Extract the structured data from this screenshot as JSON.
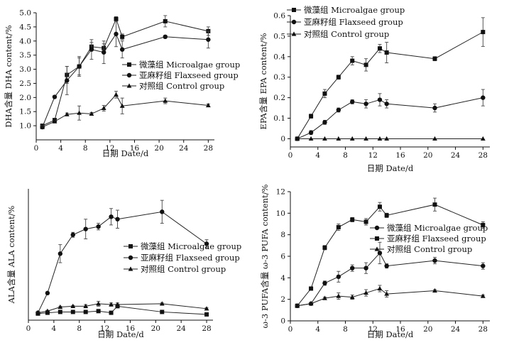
{
  "chart_data": [
    {
      "type": "line",
      "title": "",
      "xlabel": "日期  Date/d",
      "ylabel": "DHA含量  DHA content/%",
      "xlim": [
        0,
        29
      ],
      "ylim": [
        0.5,
        5.0
      ],
      "xticks": [
        0,
        4,
        8,
        12,
        16,
        20,
        24,
        28
      ],
      "xtick_labels": [
        "0",
        "4",
        "8",
        "12",
        "16",
        "20",
        "24",
        "28"
      ],
      "yticks": [
        1.0,
        1.5,
        2.0,
        2.5,
        3.0,
        3.5,
        4.0,
        4.5,
        5.0
      ],
      "ytick_labels": [
        "1.0",
        "1.5",
        "2.0",
        "2.5",
        "3.0",
        "3.5",
        "4.0",
        "4.5",
        "5.0"
      ],
      "legend_position": "center-right",
      "series": [
        {
          "name": "微藻组  Microalgae group",
          "marker": "square",
          "x": [
            1,
            3,
            5,
            7,
            9,
            11,
            13,
            14,
            21,
            28
          ],
          "y": [
            1.0,
            1.2,
            2.8,
            3.1,
            3.8,
            3.75,
            4.78,
            4.15,
            4.7,
            4.35
          ],
          "err": [
            0.05,
            0.05,
            0.3,
            0.3,
            0.15,
            0.15,
            0.08,
            0.1,
            0.2,
            0.15
          ]
        },
        {
          "name": "亚麻籽组  Flaxseed group",
          "marker": "circle",
          "x": [
            1,
            3,
            5,
            7,
            9,
            11,
            13,
            14,
            21,
            28
          ],
          "y": [
            0.95,
            2.02,
            2.6,
            3.1,
            3.7,
            3.6,
            4.25,
            3.7,
            4.15,
            4.05
          ],
          "err": [
            0.05,
            0.05,
            0.5,
            0.35,
            0.35,
            0.4,
            0.45,
            0.3,
            0.05,
            0.3
          ]
        },
        {
          "name": "对照组  Control group",
          "marker": "triangle",
          "x": [
            1,
            3,
            5,
            7,
            9,
            11,
            13,
            14,
            21,
            28
          ],
          "y": [
            0.95,
            1.15,
            1.4,
            1.45,
            1.42,
            1.62,
            2.1,
            1.7,
            1.88,
            1.72
          ],
          "err": [
            0.05,
            0.05,
            0.05,
            0.25,
            0.05,
            0.1,
            0.12,
            0.28,
            0.1,
            0.05
          ]
        }
      ]
    },
    {
      "type": "line",
      "title": "",
      "xlabel": "日期  Date/d",
      "ylabel": "EPA含量  EPA content/%",
      "xlim": [
        0,
        29
      ],
      "ylim": [
        -0.04,
        0.6
      ],
      "xticks": [
        0,
        4,
        8,
        12,
        16,
        20,
        24,
        28
      ],
      "xtick_labels": [
        "0",
        "4",
        "8",
        "12",
        "16",
        "20",
        "24",
        "28"
      ],
      "yticks": [
        0,
        0.1,
        0.2,
        0.3,
        0.4,
        0.5,
        0.6
      ],
      "ytick_labels": [
        "0",
        "0.1",
        "0.2",
        "0.3",
        "0.4",
        "0.5",
        "0.6"
      ],
      "legend_position": "top-left",
      "series": [
        {
          "name": "微藻组  Microalgae group",
          "marker": "square",
          "x": [
            1,
            3,
            5,
            7,
            9,
            11,
            13,
            14,
            21,
            28
          ],
          "y": [
            0.0,
            0.11,
            0.22,
            0.3,
            0.38,
            0.36,
            0.44,
            0.42,
            0.39,
            0.52
          ],
          "err": [
            0.005,
            0.01,
            0.02,
            0.01,
            0.02,
            0.03,
            0.02,
            0.05,
            0.01,
            0.07
          ]
        },
        {
          "name": "亚麻籽组  Flaxseed group",
          "marker": "circle",
          "x": [
            1,
            3,
            5,
            7,
            9,
            11,
            13,
            14,
            21,
            28
          ],
          "y": [
            0.0,
            0.03,
            0.08,
            0.14,
            0.18,
            0.17,
            0.19,
            0.17,
            0.15,
            0.2
          ],
          "err": [
            0.005,
            0.01,
            0.01,
            0.01,
            0.01,
            0.02,
            0.03,
            0.02,
            0.02,
            0.04
          ]
        },
        {
          "name": "对照组  Control group",
          "marker": "triangle",
          "x": [
            1,
            3,
            5,
            7,
            9,
            11,
            13,
            14,
            21,
            28
          ],
          "y": [
            0,
            0,
            0,
            0,
            0,
            0,
            0,
            0,
            0,
            0
          ],
          "err": [
            0,
            0,
            0,
            0,
            0,
            0,
            0,
            0,
            0,
            0
          ]
        }
      ]
    },
    {
      "type": "line",
      "title": "",
      "xlabel": "日期  Date/d",
      "ylabel": "ALA含量  ALA content/%",
      "xlim": [
        0,
        29
      ],
      "ylim": [
        0,
        8
      ],
      "xticks": [
        0,
        4,
        8,
        12,
        16,
        20,
        24,
        28
      ],
      "xtick_labels": [
        "0",
        "4",
        "8",
        "12",
        "16",
        "20",
        "24",
        "28"
      ],
      "yticks": [],
      "ytick_labels": [],
      "legend_position": "center",
      "series": [
        {
          "name": "微藻组  Microalgae group",
          "marker": "square",
          "x": [
            1.5,
            3,
            5,
            7,
            9,
            11,
            13,
            14,
            21,
            28
          ],
          "y": [
            0.4,
            0.45,
            0.5,
            0.5,
            0.5,
            0.55,
            0.45,
            0.85,
            0.5,
            0.35
          ],
          "err": [
            0.05,
            0.05,
            0.05,
            0.05,
            0.05,
            0.05,
            0.05,
            0.05,
            0.05,
            0.05
          ]
        },
        {
          "name": "亚麻籽组  Flaxseed group",
          "marker": "circle",
          "x": [
            1.5,
            3,
            5,
            7,
            9,
            11,
            13,
            14,
            21,
            28
          ],
          "y": [
            0.45,
            1.65,
            4.05,
            5.2,
            5.55,
            5.7,
            6.3,
            6.15,
            6.6,
            4.65
          ],
          "err": [
            0.05,
            0.05,
            0.55,
            0.15,
            0.6,
            0.2,
            0.5,
            0.55,
            0.7,
            0.25
          ]
        },
        {
          "name": "对照组  Control group",
          "marker": "triangle",
          "x": [
            1.5,
            3,
            5,
            7,
            9,
            11,
            13,
            14,
            21,
            28
          ],
          "y": [
            0.45,
            0.55,
            0.8,
            0.85,
            0.85,
            1.0,
            0.95,
            0.95,
            1.0,
            0.7
          ],
          "err": [
            0.05,
            0.05,
            0.05,
            0.05,
            0.1,
            0.15,
            0.1,
            0.1,
            0.05,
            0.05
          ]
        }
      ]
    },
    {
      "type": "line",
      "title": "",
      "xlabel": "日期  Date/d",
      "ylabel": "ω-3 PUFA含量  ω-3 PUFA content/%",
      "xlim": [
        0,
        29
      ],
      "ylim": [
        0,
        12
      ],
      "xticks": [
        0,
        4,
        8,
        12,
        16,
        20,
        24,
        28
      ],
      "xtick_labels": [
        "0",
        "4",
        "8",
        "12",
        "16",
        "20",
        "24",
        "28"
      ],
      "yticks": [
        0,
        2,
        4,
        6,
        8,
        10,
        12
      ],
      "ytick_labels": [
        "0",
        "2",
        "4",
        "6",
        "8",
        "10",
        "12"
      ],
      "legend_position": "center-right",
      "series": [
        {
          "name": "微藻组  Microalgae group",
          "marker": "circle",
          "x": [
            1,
            3,
            5,
            7,
            9,
            11,
            13,
            14,
            21,
            28
          ],
          "y": [
            1.4,
            1.6,
            3.5,
            4.1,
            4.9,
            4.9,
            6.3,
            5.1,
            5.6,
            5.1
          ],
          "err": [
            0.05,
            0.1,
            0.2,
            0.5,
            0.3,
            0.5,
            1.0,
            0.2,
            0.3,
            0.3
          ]
        },
        {
          "name": "亚麻籽组  Flaxseed group",
          "marker": "square",
          "x": [
            1,
            3,
            5,
            7,
            9,
            11,
            13,
            14,
            21,
            28
          ],
          "y": [
            1.4,
            3.0,
            6.8,
            8.7,
            9.4,
            9.2,
            10.6,
            9.8,
            10.8,
            8.9
          ],
          "err": [
            0.05,
            0.1,
            0.2,
            0.3,
            0.2,
            0.3,
            0.4,
            0.2,
            0.6,
            0.3
          ]
        },
        {
          "name": "对照组  Control group",
          "marker": "triangle",
          "x": [
            1,
            3,
            5,
            7,
            9,
            11,
            13,
            14,
            21,
            28
          ],
          "y": [
            1.4,
            1.6,
            2.1,
            2.3,
            2.2,
            2.6,
            3.0,
            2.5,
            2.8,
            2.3
          ],
          "err": [
            0.05,
            0.1,
            0.1,
            0.3,
            0.2,
            0.3,
            0.3,
            0.3,
            0.1,
            0.1
          ]
        }
      ]
    }
  ]
}
